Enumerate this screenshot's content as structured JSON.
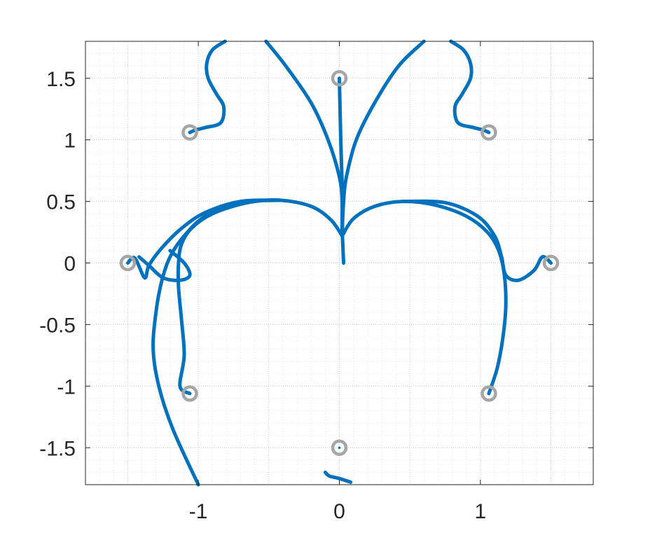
{
  "chart_data": {
    "type": "line",
    "title": "",
    "xlabel": "",
    "ylabel": "",
    "xlim": [
      -1.8,
      1.8
    ],
    "ylim": [
      -1.8,
      1.8
    ],
    "grid": true,
    "xticks": [
      -1,
      0,
      1
    ],
    "xtick_labels": [
      "-1",
      "0",
      "1"
    ],
    "yticks": [
      -1.5,
      -1,
      -0.5,
      0,
      0.5,
      1,
      1.5
    ],
    "ytick_labels": [
      "-1.5",
      "-1",
      "-0.5",
      "0",
      "0.5",
      "1",
      "1.5"
    ],
    "line_color": "#0072BD",
    "marker_color": "#A6A6A6",
    "markers": [
      {
        "x": -1.06,
        "y": 1.06
      },
      {
        "x": 0,
        "y": 1.5
      },
      {
        "x": 1.06,
        "y": 1.06
      },
      {
        "x": -1.5,
        "y": 0
      },
      {
        "x": 1.5,
        "y": 0
      },
      {
        "x": -1.06,
        "y": -1.06
      },
      {
        "x": 1.06,
        "y": -1.06
      },
      {
        "x": 0,
        "y": -1.5
      }
    ],
    "series": [
      {
        "name": "curve-1",
        "points": [
          [
            -0.81,
            1.8
          ],
          [
            -0.9,
            1.73
          ],
          [
            -0.94,
            1.62
          ],
          [
            -0.93,
            1.5
          ],
          [
            -0.87,
            1.37
          ],
          [
            -0.82,
            1.27
          ],
          [
            -0.84,
            1.14
          ],
          [
            -0.95,
            1.1
          ],
          [
            -1.02,
            1.08
          ],
          [
            -1.06,
            1.06
          ]
        ]
      },
      {
        "x_note": "",
        "name": "curve-2",
        "points": [
          [
            1.8,
            1.8
          ],
          [
            1.8,
            1.8
          ]
        ],
        "mirror_of": "",
        "hidden": true
      },
      {
        "name": "curve-3",
        "points": [
          [
            0.79,
            1.8
          ],
          [
            0.88,
            1.73
          ],
          [
            0.93,
            1.62
          ],
          [
            0.93,
            1.5
          ],
          [
            0.87,
            1.37
          ],
          [
            0.82,
            1.27
          ],
          [
            0.84,
            1.14
          ],
          [
            0.95,
            1.1
          ],
          [
            1.02,
            1.08
          ],
          [
            1.06,
            1.06
          ]
        ]
      },
      {
        "name": "curve-4",
        "points": [
          [
            0,
            1.5
          ],
          [
            0.01,
            1.0
          ],
          [
            0.02,
            0.6
          ],
          [
            0.02,
            0.3
          ],
          [
            0.03,
            0.0
          ]
        ]
      },
      {
        "name": "curve-5",
        "points": [
          [
            -0.52,
            1.8
          ],
          [
            -0.38,
            1.6
          ],
          [
            -0.2,
            1.3
          ],
          [
            -0.08,
            1.0
          ],
          [
            0.0,
            0.7
          ],
          [
            0.02,
            0.5
          ],
          [
            0.02,
            0.25
          ]
        ]
      },
      {
        "name": "curve-6",
        "points": [
          [
            0.6,
            1.8
          ],
          [
            0.42,
            1.6
          ],
          [
            0.25,
            1.3
          ],
          [
            0.12,
            1.0
          ],
          [
            0.05,
            0.7
          ],
          [
            0.03,
            0.5
          ],
          [
            0.02,
            0.25
          ]
        ]
      },
      {
        "name": "curve-7",
        "points": [
          [
            0.02,
            0.22
          ],
          [
            -0.06,
            0.35
          ],
          [
            -0.2,
            0.46
          ],
          [
            -0.42,
            0.51
          ],
          [
            -0.65,
            0.49
          ],
          [
            -0.9,
            0.4
          ],
          [
            -1.05,
            0.28
          ],
          [
            -1.12,
            0.15
          ],
          [
            -1.14,
            0.0
          ],
          [
            -1.14,
            -0.2
          ],
          [
            -1.12,
            -0.45
          ],
          [
            -1.1,
            -0.75
          ],
          [
            -1.13,
            -1.0
          ],
          [
            -1.06,
            -1.06
          ]
        ]
      },
      {
        "name": "curve-8",
        "points": [
          [
            0.02,
            0.22
          ],
          [
            0.1,
            0.36
          ],
          [
            0.25,
            0.46
          ],
          [
            0.45,
            0.5
          ],
          [
            0.68,
            0.47
          ],
          [
            0.9,
            0.38
          ],
          [
            1.05,
            0.25
          ],
          [
            1.13,
            0.1
          ],
          [
            1.17,
            -0.1
          ],
          [
            1.18,
            -0.35
          ],
          [
            1.16,
            -0.6
          ],
          [
            1.12,
            -0.85
          ],
          [
            1.06,
            -1.06
          ]
        ]
      },
      {
        "name": "curve-9",
        "points": [
          [
            -0.42,
            0.51
          ],
          [
            -0.7,
            0.5
          ],
          [
            -0.95,
            0.41
          ],
          [
            -1.12,
            0.28
          ],
          [
            -1.26,
            0.12
          ],
          [
            -1.35,
            -0.02
          ],
          [
            -1.38,
            -0.12
          ],
          [
            -1.45,
            0.04
          ],
          [
            -1.5,
            0.0
          ]
        ]
      },
      {
        "name": "curve-10",
        "points": [
          [
            0.45,
            0.5
          ],
          [
            0.75,
            0.49
          ],
          [
            0.98,
            0.38
          ],
          [
            1.1,
            0.22
          ],
          [
            1.15,
            0.05
          ],
          [
            1.18,
            -0.1
          ],
          [
            1.27,
            -0.14
          ],
          [
            1.38,
            -0.06
          ],
          [
            1.44,
            0.05
          ],
          [
            1.5,
            0.0
          ]
        ]
      },
      {
        "name": "curve-11",
        "points": [
          [
            -0.42,
            0.51
          ],
          [
            -0.7,
            0.49
          ],
          [
            -0.95,
            0.38
          ],
          [
            -1.1,
            0.22
          ],
          [
            -1.2,
            0.05
          ],
          [
            -1.26,
            -0.15
          ],
          [
            -1.3,
            -0.4
          ],
          [
            -1.32,
            -0.7
          ],
          [
            -1.28,
            -1.0
          ],
          [
            -1.18,
            -1.35
          ],
          [
            -1.0,
            -1.8
          ]
        ]
      },
      {
        "name": "curve-12",
        "points": [
          [
            -1.2,
            0.1
          ],
          [
            -1.1,
            0.0
          ],
          [
            -1.06,
            -0.1
          ],
          [
            -1.13,
            -0.14
          ],
          [
            -1.25,
            -0.12
          ],
          [
            -1.35,
            -0.02
          ],
          [
            -1.42,
            0.05
          ]
        ]
      },
      {
        "name": "curve-13",
        "points": [
          [
            -0.1,
            -1.7
          ],
          [
            -0.07,
            -1.73
          ],
          [
            0.0,
            -1.75
          ],
          [
            0.08,
            -1.78
          ]
        ]
      }
    ]
  }
}
